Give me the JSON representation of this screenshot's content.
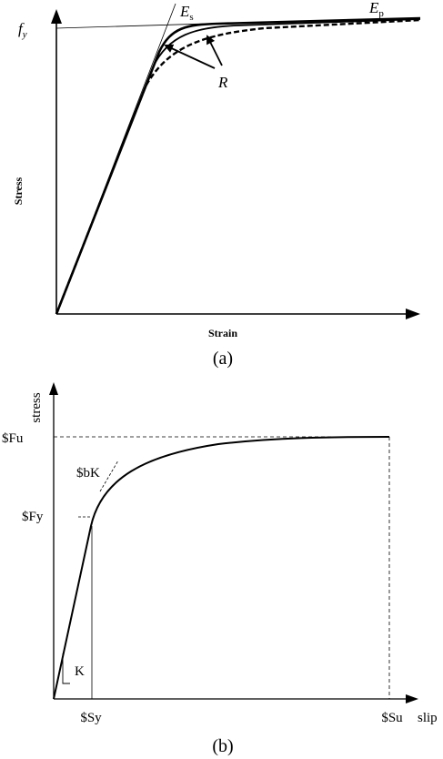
{
  "figure_a": {
    "y_axis_label": "Stress",
    "x_axis_label": "Strain",
    "fy_label": "f",
    "fy_sub": "y",
    "es_label": "E",
    "es_sub": "s",
    "ep_label": "E",
    "ep_sub": "p",
    "r_label": "R",
    "caption": "(a)"
  },
  "figure_b": {
    "y_axis_label": "stress",
    "x_axis_label": "slip",
    "fu_label": "$Fu",
    "fy_label": "$Fy",
    "bk_label": "$bK",
    "k_label": "K",
    "sy_label": "$Sy",
    "su_label": "$Su",
    "caption": "(b)"
  },
  "colors": {
    "ink": "#000000"
  }
}
